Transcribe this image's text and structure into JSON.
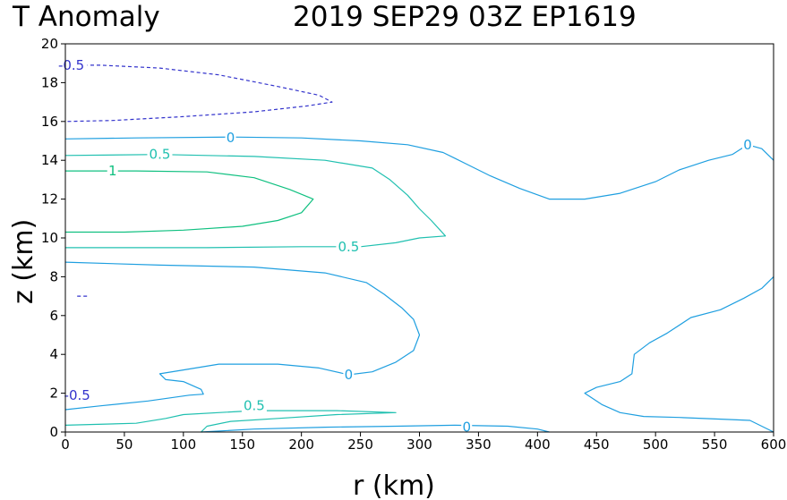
{
  "chart_data": {
    "type": "contour",
    "title_left": "T Anomaly",
    "title_right": "2019 SEP29 03Z   EP1619",
    "xlabel": "r (km)",
    "ylabel": "z (km)",
    "xlim": [
      0,
      600
    ],
    "ylim": [
      0,
      20
    ],
    "x_ticks": [
      "0",
      "50",
      "100",
      "150",
      "200",
      "250",
      "300",
      "350",
      "400",
      "450",
      "500",
      "550",
      "600"
    ],
    "y_ticks": [
      "0",
      "2",
      "4",
      "6",
      "8",
      "10",
      "12",
      "14",
      "16",
      "18",
      "20"
    ],
    "grid": false,
    "colors": {
      "neg_0_5": "#3333cc",
      "zero": "#1f9fe0",
      "pos_0_5": "#20c0b0",
      "pos_1": "#10c080"
    },
    "contours": [
      {
        "level": -0.5,
        "style": "dashed",
        "color_key": "neg_0_5",
        "points": [
          [
            0,
            18.9
          ],
          [
            30,
            18.9
          ],
          [
            80,
            18.75
          ],
          [
            130,
            18.4
          ],
          [
            180,
            17.8
          ],
          [
            215,
            17.35
          ],
          [
            226,
            17.0
          ],
          [
            205,
            16.8
          ],
          [
            160,
            16.5
          ],
          [
            100,
            16.25
          ],
          [
            40,
            16.05
          ],
          [
            0,
            16.0
          ]
        ]
      },
      {
        "level": -0.5,
        "style": "dashed",
        "color_key": "neg_0_5",
        "points": [
          [
            10,
            7.0
          ],
          [
            20,
            7.0
          ]
        ]
      },
      {
        "level": -0.5,
        "style": "dashed",
        "color_key": "neg_0_5",
        "points": [
          [
            0,
            2.1
          ],
          [
            10,
            1.9
          ],
          [
            20,
            1.9
          ]
        ]
      },
      {
        "level": 0,
        "style": "solid",
        "color_key": "zero",
        "points": [
          [
            0,
            15.1
          ],
          [
            60,
            15.15
          ],
          [
            140,
            15.2
          ],
          [
            200,
            15.15
          ],
          [
            250,
            15.0
          ],
          [
            290,
            14.8
          ],
          [
            320,
            14.4
          ],
          [
            340,
            13.8
          ],
          [
            360,
            13.2
          ],
          [
            385,
            12.55
          ],
          [
            410,
            12.0
          ],
          [
            440,
            12.0
          ],
          [
            470,
            12.3
          ],
          [
            500,
            12.9
          ],
          [
            520,
            13.5
          ],
          [
            545,
            14.0
          ],
          [
            565,
            14.3
          ],
          [
            578,
            14.8
          ],
          [
            590,
            14.6
          ],
          [
            600,
            14.0
          ]
        ]
      },
      {
        "level": 0,
        "style": "solid",
        "color_key": "zero",
        "points": [
          [
            0,
            8.75
          ],
          [
            80,
            8.6
          ],
          [
            160,
            8.5
          ],
          [
            220,
            8.2
          ],
          [
            255,
            7.7
          ],
          [
            270,
            7.1
          ],
          [
            285,
            6.4
          ],
          [
            295,
            5.8
          ],
          [
            300,
            5.0
          ],
          [
            295,
            4.2
          ],
          [
            280,
            3.6
          ],
          [
            260,
            3.1
          ],
          [
            240,
            2.95
          ],
          [
            215,
            3.3
          ],
          [
            180,
            3.5
          ],
          [
            130,
            3.5
          ],
          [
            100,
            3.2
          ],
          [
            80,
            3.0
          ],
          [
            85,
            2.7
          ],
          [
            100,
            2.6
          ],
          [
            115,
            2.2
          ],
          [
            117,
            1.95
          ],
          [
            105,
            1.9
          ],
          [
            70,
            1.6
          ],
          [
            30,
            1.35
          ],
          [
            0,
            1.15
          ]
        ]
      },
      {
        "level": 0,
        "style": "solid",
        "color_key": "zero",
        "points": [
          [
            115,
            0.0
          ],
          [
            160,
            0.15
          ],
          [
            220,
            0.25
          ],
          [
            280,
            0.3
          ],
          [
            330,
            0.35
          ],
          [
            375,
            0.3
          ],
          [
            400,
            0.15
          ],
          [
            410,
            0.0
          ]
        ]
      },
      {
        "level": 0,
        "style": "solid",
        "color_key": "zero",
        "points": [
          [
            600,
            8.0
          ],
          [
            590,
            7.4
          ],
          [
            575,
            6.9
          ],
          [
            555,
            6.3
          ],
          [
            530,
            5.9
          ],
          [
            510,
            5.1
          ],
          [
            495,
            4.6
          ],
          [
            482,
            4.0
          ],
          [
            480,
            3.0
          ],
          [
            470,
            2.6
          ],
          [
            450,
            2.3
          ],
          [
            440,
            2.0
          ],
          [
            455,
            1.4
          ],
          [
            470,
            1.0
          ],
          [
            490,
            0.8
          ],
          [
            520,
            0.75
          ],
          [
            560,
            0.65
          ],
          [
            580,
            0.6
          ],
          [
            600,
            0.0
          ]
        ]
      },
      {
        "level": 0.5,
        "style": "solid",
        "color_key": "pos_0_5",
        "points": [
          [
            0,
            14.25
          ],
          [
            80,
            14.3
          ],
          [
            160,
            14.2
          ],
          [
            220,
            14.0
          ],
          [
            260,
            13.6
          ],
          [
            275,
            13.0
          ],
          [
            290,
            12.2
          ],
          [
            300,
            11.5
          ],
          [
            310,
            10.9
          ],
          [
            322,
            10.1
          ],
          [
            300,
            10.0
          ],
          [
            280,
            9.75
          ],
          [
            250,
            9.55
          ],
          [
            200,
            9.55
          ],
          [
            120,
            9.5
          ],
          [
            0,
            9.5
          ]
        ]
      },
      {
        "level": 0.5,
        "style": "solid",
        "color_key": "pos_0_5",
        "points": [
          [
            0,
            0.35
          ],
          [
            60,
            0.45
          ],
          [
            85,
            0.7
          ],
          [
            100,
            0.9
          ],
          [
            160,
            1.1
          ],
          [
            230,
            1.1
          ],
          [
            280,
            1.0
          ],
          [
            230,
            0.9
          ],
          [
            180,
            0.7
          ],
          [
            140,
            0.55
          ],
          [
            120,
            0.3
          ],
          [
            115,
            0.0
          ]
        ]
      },
      {
        "level": 1,
        "style": "solid",
        "color_key": "pos_1",
        "points": [
          [
            0,
            13.45
          ],
          [
            60,
            13.45
          ],
          [
            120,
            13.4
          ],
          [
            160,
            13.1
          ],
          [
            190,
            12.5
          ],
          [
            210,
            12.0
          ],
          [
            200,
            11.3
          ],
          [
            180,
            10.9
          ],
          [
            150,
            10.6
          ],
          [
            100,
            10.4
          ],
          [
            50,
            10.3
          ],
          [
            0,
            10.3
          ]
        ]
      }
    ],
    "contour_labels": [
      {
        "text": "-0.5",
        "x": 5,
        "y": 18.9,
        "color_key": "neg_0_5"
      },
      {
        "text": "0",
        "x": 140,
        "y": 15.15,
        "color_key": "zero"
      },
      {
        "text": "0.5",
        "x": 80,
        "y": 14.3,
        "color_key": "pos_0_5"
      },
      {
        "text": "1",
        "x": 40,
        "y": 13.45,
        "color_key": "pos_1"
      },
      {
        "text": "0",
        "x": 578,
        "y": 14.8,
        "color_key": "zero"
      },
      {
        "text": "0.5",
        "x": 240,
        "y": 9.55,
        "color_key": "pos_0_5"
      },
      {
        "text": "0",
        "x": 240,
        "y": 2.95,
        "color_key": "zero"
      },
      {
        "text": "-0.5",
        "x": 10,
        "y": 1.9,
        "color_key": "neg_0_5"
      },
      {
        "text": "0.5",
        "x": 160,
        "y": 1.35,
        "color_key": "pos_0_5"
      },
      {
        "text": "0",
        "x": 340,
        "y": 0.25,
        "color_key": "zero"
      }
    ]
  }
}
